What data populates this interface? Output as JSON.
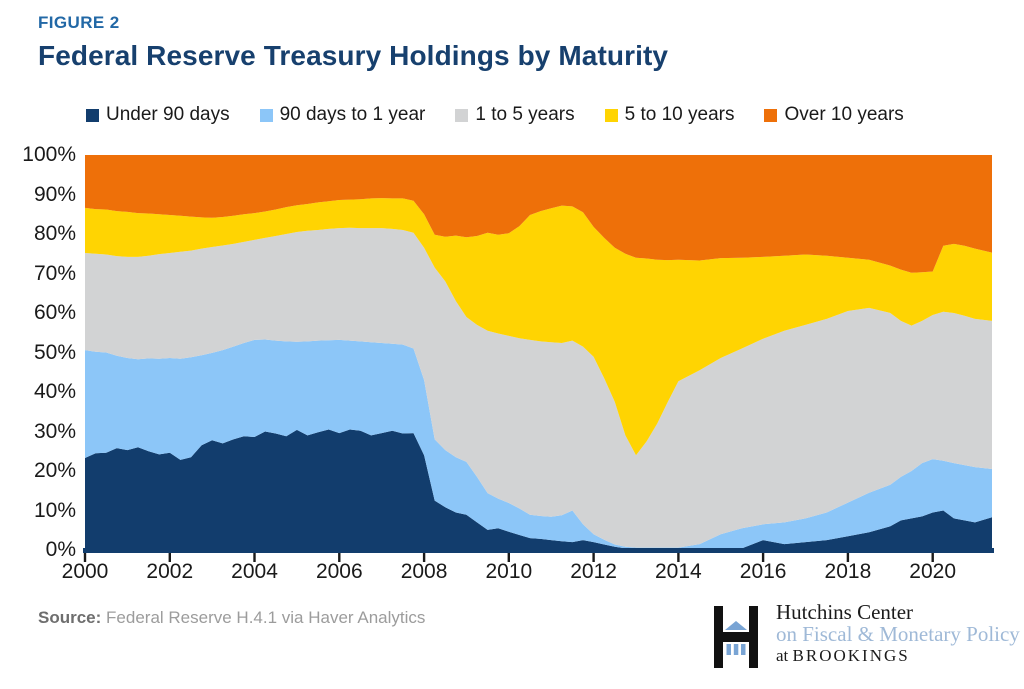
{
  "figure_label": "FIGURE 2",
  "title": "Federal Reserve Treasury Holdings by Maturity",
  "source": {
    "label": "Source:",
    "text": "Federal Reserve H.4.1 via Haver Analytics"
  },
  "logo": {
    "line1": "Hutchins Center",
    "line2": "on Fiscal & Monetary Policy",
    "line3_prefix": "at ",
    "line3_name": "BROOKINGS"
  },
  "colors": {
    "figure_label": "#2268A6",
    "title": "#17406E",
    "axis_bar": "#123D6D",
    "tick": "#1a1a1a",
    "logo_blue": "#79A4D4"
  },
  "chart_data": {
    "type": "area",
    "stacked": true,
    "units": "percent of holdings",
    "title": "Federal Reserve Treasury Holdings by Maturity",
    "xlabel": "",
    "ylabel": "",
    "grid": false,
    "legend_position": "top",
    "xlim": [
      2000,
      2021.4
    ],
    "ylim": [
      0,
      100
    ],
    "xticks": [
      2000,
      2002,
      2004,
      2006,
      2008,
      2010,
      2012,
      2014,
      2016,
      2018,
      2020
    ],
    "yticks": [
      "0%",
      "10%",
      "20%",
      "30%",
      "40%",
      "50%",
      "60%",
      "70%",
      "80%",
      "90%",
      "100%"
    ],
    "x": [
      2000.0,
      2000.25,
      2000.5,
      2000.75,
      2001.0,
      2001.25,
      2001.5,
      2001.75,
      2002.0,
      2002.25,
      2002.5,
      2002.75,
      2003.0,
      2003.25,
      2003.5,
      2003.75,
      2004.0,
      2004.25,
      2004.5,
      2004.75,
      2005.0,
      2005.25,
      2005.5,
      2005.75,
      2006.0,
      2006.25,
      2006.5,
      2006.75,
      2007.0,
      2007.25,
      2007.5,
      2007.75,
      2008.0,
      2008.25,
      2008.5,
      2008.75,
      2009.0,
      2009.25,
      2009.5,
      2009.75,
      2010.0,
      2010.25,
      2010.5,
      2010.75,
      2011.0,
      2011.25,
      2011.5,
      2011.75,
      2012.0,
      2012.25,
      2012.5,
      2012.75,
      2013.0,
      2013.25,
      2013.5,
      2013.75,
      2014.0,
      2014.5,
      2015.0,
      2015.5,
      2016.0,
      2016.5,
      2017.0,
      2017.5,
      2018.0,
      2018.5,
      2019.0,
      2019.25,
      2019.5,
      2019.75,
      2020.0,
      2020.25,
      2020.5,
      2020.75,
      2021.0,
      2021.4
    ],
    "series": [
      {
        "name": "Under 90 days",
        "color": "#123D6D",
        "values": [
          23.3,
          24.5,
          24.6,
          25.8,
          25.3,
          26.0,
          25.0,
          24.2,
          24.6,
          22.8,
          23.5,
          26.5,
          27.8,
          27.0,
          28.0,
          28.8,
          28.6,
          30.0,
          29.5,
          28.8,
          30.4,
          29.0,
          29.8,
          30.5,
          29.6,
          30.5,
          30.2,
          29.0,
          29.6,
          30.2,
          29.5,
          29.6,
          24.0,
          12.5,
          10.8,
          9.5,
          8.9,
          7.0,
          5.1,
          5.5,
          4.6,
          3.8,
          3.0,
          2.8,
          2.5,
          2.2,
          2.0,
          2.5,
          2.0,
          1.4,
          0.8,
          0.4,
          0.3,
          0.3,
          0.3,
          0.3,
          0.3,
          0.3,
          0.3,
          0.4,
          2.5,
          1.5,
          2.0,
          2.5,
          3.5,
          4.5,
          6.0,
          7.5,
          8.0,
          8.5,
          9.5,
          10.0,
          8.0,
          7.5,
          7.0,
          8.3
        ]
      },
      {
        "name": "90 days to 1 year",
        "color": "#8CC6F8",
        "values": [
          27.3,
          25.7,
          25.4,
          23.4,
          23.3,
          22.3,
          23.5,
          24.2,
          24.0,
          25.6,
          25.3,
          22.8,
          22.1,
          23.6,
          23.5,
          23.6,
          24.6,
          23.3,
          23.5,
          24.0,
          22.3,
          23.8,
          23.2,
          22.6,
          23.6,
          22.5,
          22.6,
          23.6,
          22.8,
          22.0,
          22.5,
          21.4,
          19.0,
          15.5,
          14.5,
          14.0,
          13.4,
          11.5,
          9.3,
          7.5,
          7.3,
          6.7,
          5.9,
          5.8,
          5.9,
          6.6,
          8.0,
          4.0,
          2.0,
          1.2,
          0.6,
          0.4,
          0.3,
          0.3,
          0.3,
          0.3,
          0.3,
          1.2,
          3.7,
          5.1,
          4.0,
          5.5,
          6.0,
          7.0,
          8.5,
          10.0,
          10.5,
          11.0,
          12.0,
          13.5,
          13.5,
          12.6,
          14.0,
          14.0,
          14.0,
          12.2
        ]
      },
      {
        "name": "1 to 5 years",
        "color": "#D2D3D4",
        "values": [
          24.6,
          24.8,
          24.8,
          25.2,
          25.6,
          25.9,
          26.0,
          26.5,
          26.6,
          27.1,
          27.0,
          27.0,
          26.8,
          26.5,
          26.0,
          25.6,
          25.3,
          25.7,
          26.5,
          27.2,
          27.8,
          28.0,
          28.0,
          28.2,
          28.3,
          28.6,
          28.7,
          28.9,
          29.1,
          29.1,
          29.0,
          29.3,
          33.5,
          43.5,
          42.7,
          39.5,
          36.7,
          38.5,
          41.1,
          41.8,
          42.3,
          43.1,
          44.3,
          44.2,
          44.2,
          43.6,
          43.0,
          45.0,
          44.9,
          40.9,
          36.1,
          28.2,
          23.4,
          26.9,
          31.4,
          36.9,
          42.1,
          44.0,
          44.6,
          45.5,
          47.0,
          48.5,
          49.0,
          49.0,
          48.5,
          46.8,
          43.5,
          39.5,
          36.8,
          36.0,
          36.5,
          37.7,
          38.0,
          37.8,
          37.5,
          37.5
        ]
      },
      {
        "name": "5 to 10 years",
        "color": "#FFD402",
        "values": [
          11.4,
          11.3,
          11.4,
          11.4,
          11.4,
          11.1,
          10.7,
          10.1,
          9.6,
          9.1,
          8.6,
          7.9,
          7.4,
          7.2,
          7.1,
          7.0,
          6.8,
          6.7,
          6.7,
          6.8,
          6.8,
          6.8,
          7.0,
          7.0,
          7.1,
          7.1,
          7.3,
          7.5,
          7.6,
          7.7,
          8.0,
          8.1,
          8.5,
          8.3,
          11.3,
          16.6,
          20.2,
          22.5,
          24.8,
          25.0,
          26.0,
          28.4,
          31.6,
          33.0,
          33.9,
          34.8,
          34.0,
          34.0,
          32.9,
          35.5,
          39.0,
          46.0,
          50.0,
          46.3,
          41.5,
          35.9,
          30.8,
          27.8,
          25.3,
          23.0,
          20.7,
          19.0,
          17.8,
          16.0,
          13.5,
          12.2,
          12.0,
          13.0,
          13.4,
          12.3,
          11.0,
          16.7,
          17.5,
          17.7,
          17.8,
          17.3
        ]
      },
      {
        "name": "Over 10 years",
        "color": "#EE7009",
        "values": [
          13.4,
          13.7,
          13.8,
          14.2,
          14.4,
          14.7,
          14.8,
          15.0,
          15.2,
          15.4,
          15.6,
          15.8,
          15.9,
          15.7,
          15.4,
          15.0,
          14.7,
          14.3,
          13.8,
          13.2,
          12.7,
          12.4,
          12.0,
          11.7,
          11.4,
          11.3,
          11.2,
          11.0,
          10.9,
          11.0,
          11.0,
          11.6,
          15.0,
          20.2,
          20.7,
          20.4,
          20.8,
          20.5,
          19.7,
          20.2,
          19.8,
          18.0,
          15.2,
          14.2,
          13.5,
          12.8,
          13.0,
          14.5,
          18.2,
          21.0,
          23.5,
          25.0,
          26.0,
          26.2,
          26.5,
          26.6,
          26.5,
          26.7,
          26.1,
          26.0,
          25.8,
          25.5,
          25.2,
          25.5,
          26.0,
          26.5,
          28.0,
          29.0,
          29.8,
          29.7,
          29.5,
          23.0,
          22.5,
          23.0,
          23.7,
          24.7
        ]
      }
    ]
  }
}
